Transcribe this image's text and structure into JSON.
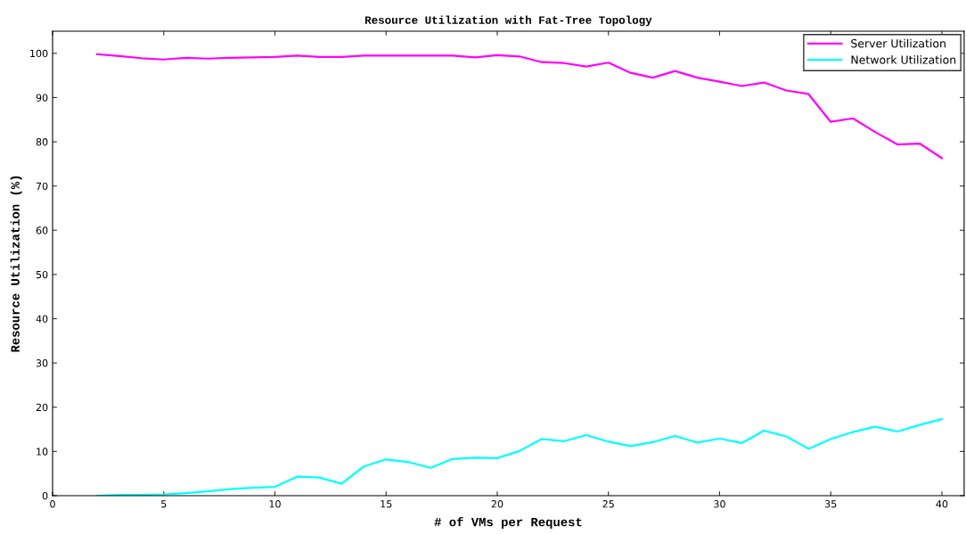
{
  "chart_data": {
    "type": "line",
    "title": "Resource Utilization with Fat-Tree Topology",
    "xlabel": "# of VMs per Request",
    "ylabel": "Resource Utilization (%)",
    "x": [
      2,
      3,
      4,
      5,
      6,
      7,
      8,
      9,
      10,
      11,
      12,
      13,
      14,
      15,
      16,
      17,
      18,
      19,
      20,
      21,
      22,
      23,
      24,
      25,
      26,
      27,
      28,
      29,
      30,
      31,
      32,
      33,
      34,
      35,
      36,
      37,
      38,
      39,
      40
    ],
    "series": [
      {
        "name": "Server Utilization",
        "color": "#ff00ff",
        "values": [
          99.8,
          99.4,
          98.9,
          98.6,
          99.0,
          98.8,
          99.0,
          99.1,
          99.2,
          99.5,
          99.2,
          99.2,
          99.5,
          99.5,
          99.5,
          99.5,
          99.5,
          99.1,
          99.6,
          99.3,
          98.0,
          97.8,
          97.0,
          97.9,
          95.6,
          94.5,
          96.0,
          94.5,
          93.6,
          92.6,
          93.4,
          91.6,
          90.8,
          84.5,
          85.3,
          82.2,
          79.4,
          79.6,
          76.3
        ]
      },
      {
        "name": "Network Utilization",
        "color": "#00ffff",
        "values": [
          0,
          0.2,
          0.2,
          0.3,
          0.6,
          1.0,
          1.5,
          1.8,
          2.0,
          4.3,
          4.1,
          2.7,
          6.6,
          8.2,
          7.6,
          6.3,
          8.3,
          8.6,
          8.5,
          10.1,
          12.8,
          12.3,
          13.7,
          12.2,
          11.2,
          12.1,
          13.5,
          12.0,
          12.9,
          11.9,
          14.7,
          13.4,
          10.6,
          12.8,
          14.4,
          15.6,
          14.5,
          16.0,
          17.3
        ]
      }
    ],
    "xlim": [
      0,
      41
    ],
    "xticks": [
      0,
      5,
      10,
      15,
      20,
      25,
      30,
      35,
      40
    ],
    "ylim": [
      0,
      105
    ],
    "yticks": [
      0,
      10,
      20,
      30,
      40,
      50,
      60,
      70,
      80,
      90,
      100
    ],
    "grid": false,
    "legend": "top right",
    "marker": "none",
    "line_style": "solid"
  }
}
